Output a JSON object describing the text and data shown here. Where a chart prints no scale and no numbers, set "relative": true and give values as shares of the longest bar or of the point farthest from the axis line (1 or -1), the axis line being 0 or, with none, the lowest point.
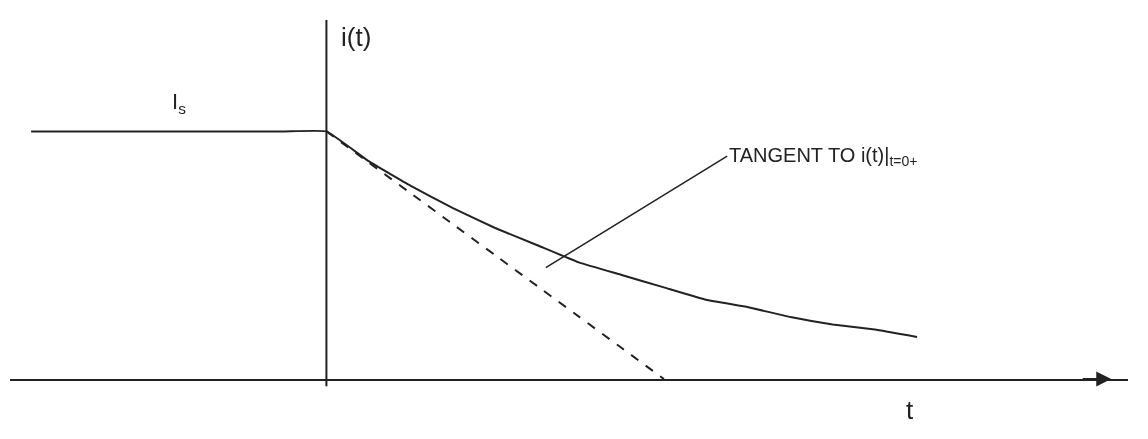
{
  "chart_data": {
    "type": "line",
    "relative": true,
    "ylabel": "i(t)",
    "xlabel": "t",
    "categories": [
      null,
      null,
      null,
      null,
      null,
      null,
      null,
      null,
      null,
      null,
      null,
      null,
      null,
      null,
      null,
      null,
      null,
      null,
      null,
      null,
      null,
      null
    ],
    "series": [
      {
        "color": "#222222",
        "line_style": "solid",
        "values": [
          1,
          1,
          1,
          1,
          1,
          1,
          1,
          1,
          0.88,
          0.78,
          0.69,
          0.61,
          0.54,
          0.47,
          0.42,
          0.37,
          0.32,
          0.29,
          0.25,
          0.22,
          0.2,
          0.17
        ]
      },
      {
        "color": "#222222",
        "line_style": "dashed",
        "values": [
          null,
          null,
          null,
          null,
          null,
          null,
          null,
          1,
          0.875,
          0.75,
          0.625,
          0.5,
          0.375,
          0.25,
          0.125,
          0,
          null,
          null,
          null,
          null,
          null,
          null
        ]
      }
    ],
    "annotations": [
      "I$_{s}$",
      "TANGENT TO i(t)|$_{t=0+}$"
    ],
    "marker": "none"
  }
}
